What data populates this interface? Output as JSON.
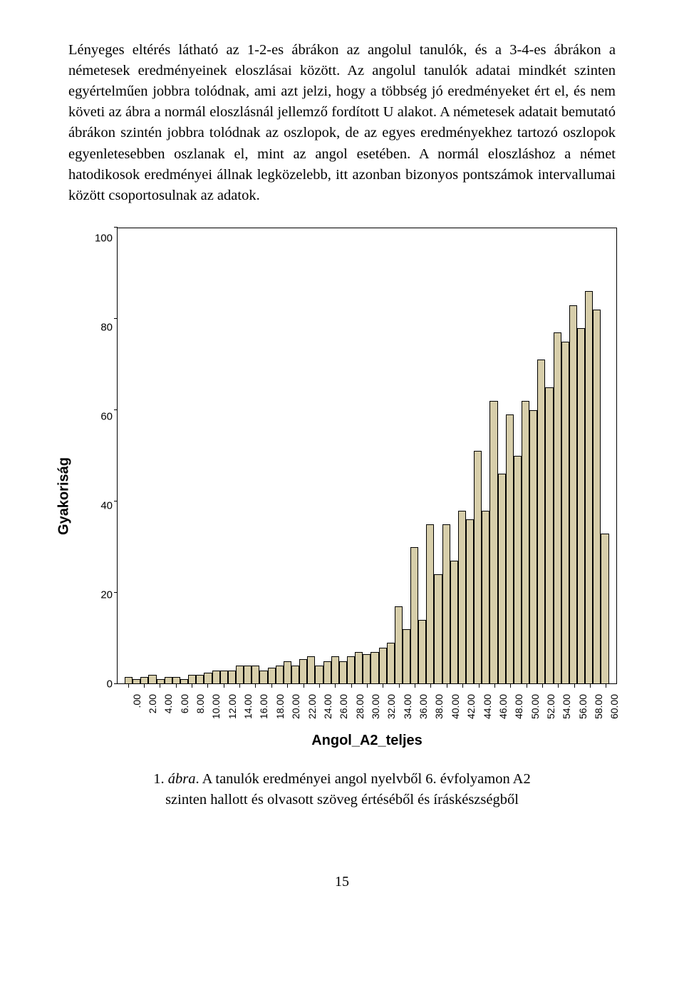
{
  "paragraph": "Lényeges eltérés látható az 1-2-es ábrákon az angolul tanulók, és a 3-4-es ábrákon a németesek eredményeinek eloszlásai között. Az angolul tanulók adatai mindkét szinten egyértelműen jobbra tolódnak, ami azt jelzi, hogy a többség jó eredményeket ért el, és nem követi az ábra a normál eloszlásnál jellemző fordított U alakot. A németesek adatait bemutató ábrákon szintén jobbra tolódnak az oszlopok, de az egyes eredményekhez tartozó oszlopok egyenletesebben oszlanak el, mint az angol esetében. A normál eloszláshoz a német hatodikosok eredményei állnak legközelebb, itt azonban bizonyos pontszámok intervallumai között csoportosulnak az adatok.",
  "chart": {
    "type": "bar",
    "y_label": "Gyakoriság",
    "x_label": "Angol_A2_teljes",
    "ylim_max": 100,
    "ytick_values": [
      100,
      80,
      60,
      40,
      20,
      0
    ],
    "bar_fill": "#d7ceaa",
    "bar_stroke": "#000000",
    "plot_border": "#000000",
    "background": "#ffffff",
    "categories": [
      ".00",
      "1.00",
      "2.00",
      "3.00",
      "4.00",
      "5.00",
      "6.00",
      "7.00",
      "8.00",
      "9.00",
      "10.00",
      "11.00",
      "12.00",
      "13.00",
      "14.00",
      "15.00",
      "16.00",
      "17.00",
      "18.00",
      "19.00",
      "20.00",
      "21.00",
      "22.00",
      "23.00",
      "24.00",
      "25.00",
      "26.00",
      "27.00",
      "28.00",
      "29.00",
      "30.00",
      "31.00",
      "32.00",
      "33.00",
      "34.00",
      "35.00",
      "36.00",
      "37.00",
      "38.00",
      "39.00",
      "40.00",
      "41.00",
      "42.00",
      "43.00",
      "44.00",
      "45.00",
      "46.00",
      "47.00",
      "48.00",
      "49.00",
      "50.00",
      "51.00",
      "52.00",
      "53.00",
      "54.00",
      "55.00",
      "56.00",
      "57.00",
      "58.00",
      "59.00",
      "60.00"
    ],
    "values": [
      1.5,
      1,
      1.5,
      2,
      1,
      1.5,
      1.5,
      1,
      2,
      2,
      2.5,
      3,
      3,
      3,
      4,
      4,
      4,
      3,
      3.5,
      4,
      5,
      4,
      5.5,
      6,
      4,
      5,
      6,
      5,
      6,
      7,
      6.5,
      7,
      8,
      9,
      17,
      12,
      30,
      14,
      35,
      24,
      35,
      27,
      38,
      36,
      51,
      38,
      62,
      46,
      59,
      50,
      62,
      60,
      71,
      65,
      77,
      75,
      83,
      78,
      86,
      82,
      33
    ],
    "x_tick_every": 2
  },
  "caption": {
    "number": "1.",
    "label_word": "ábra",
    "text": ". A tanulók eredményei angol nyelvből 6. évfolyamon A2 szinten hallott és olvasott szöveg értéséből és íráskészségből"
  },
  "page_number": "15"
}
